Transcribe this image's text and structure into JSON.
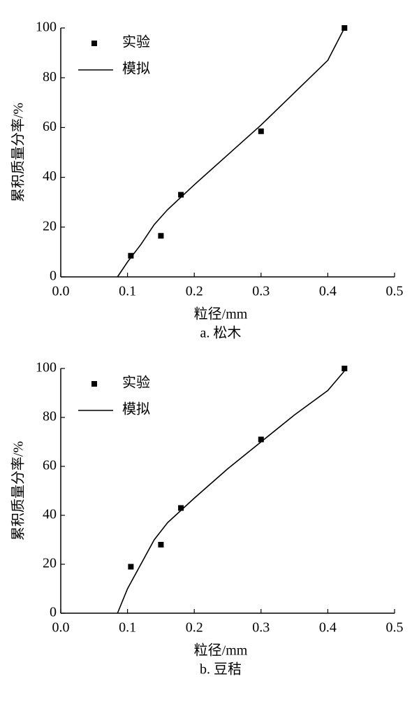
{
  "chart_data": [
    {
      "type": "scatter",
      "caption": "a. 松木",
      "x_label": "粒径/mm",
      "y_label": "累积质量分率/%",
      "xlim": [
        0,
        0.5
      ],
      "ylim": [
        0,
        100
      ],
      "xticks": [
        {
          "value": 0,
          "label": "0.0"
        },
        0.1,
        0.2,
        0.3,
        0.4,
        0.5
      ],
      "yticks": [
        0,
        20,
        40,
        60,
        80,
        100
      ],
      "series": [
        {
          "name": "实验",
          "color": "#000000",
          "mode": "markers",
          "x": [
            0.105,
            0.15,
            0.18,
            0.3,
            0.425
          ],
          "values": [
            8.5,
            16.5,
            33,
            58.5,
            100
          ]
        },
        {
          "name": "模拟",
          "color": "#000000",
          "mode": "line",
          "x": [
            0.085,
            0.1,
            0.12,
            0.14,
            0.16,
            0.18,
            0.2,
            0.25,
            0.3,
            0.35,
            0.4,
            0.425
          ],
          "values": [
            0,
            6,
            13,
            21,
            27,
            32,
            37,
            49,
            61,
            74,
            87,
            100
          ]
        }
      ]
    },
    {
      "type": "scatter",
      "caption": "b. 豆秸",
      "x_label": "粒径/mm",
      "y_label": "累积质量分率/%",
      "xlim": [
        0,
        0.5
      ],
      "ylim": [
        0,
        100
      ],
      "xticks": [
        {
          "value": 0,
          "label": "0.0"
        },
        0.1,
        0.2,
        0.3,
        0.4,
        0.5
      ],
      "yticks": [
        0,
        20,
        40,
        60,
        80,
        100
      ],
      "series": [
        {
          "name": "实验",
          "color": "#000000",
          "mode": "markers",
          "x": [
            0.105,
            0.15,
            0.18,
            0.3,
            0.425
          ],
          "values": [
            19,
            28,
            43,
            71,
            100
          ]
        },
        {
          "name": "模拟",
          "color": "#000000",
          "mode": "line",
          "x": [
            0.085,
            0.1,
            0.12,
            0.14,
            0.16,
            0.18,
            0.2,
            0.25,
            0.3,
            0.35,
            0.4,
            0.425
          ],
          "values": [
            0,
            10,
            20,
            30,
            37,
            42,
            47,
            59,
            70,
            81,
            91,
            99
          ]
        }
      ]
    }
  ]
}
